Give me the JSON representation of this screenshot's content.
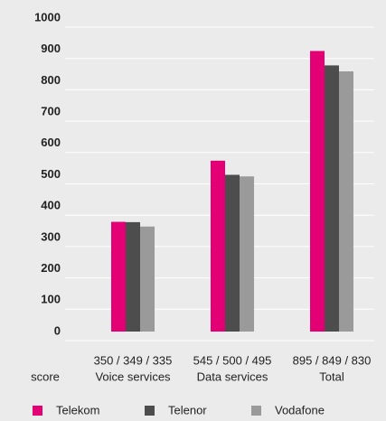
{
  "chart_data": {
    "type": "bar",
    "y_label": "score",
    "categories": [
      "Voice services",
      "Data services",
      "Total"
    ],
    "group_labels": [
      "350 / 349 / 335",
      "545 / 500 / 495",
      "895 / 849 / 830"
    ],
    "series": [
      {
        "name": "Telekom",
        "color": "#e20074",
        "values": [
          350,
          545,
          895
        ]
      },
      {
        "name": "Telenor",
        "color": "#4d4d4d",
        "values": [
          349,
          500,
          849
        ]
      },
      {
        "name": "Vodafone",
        "color": "#9a9a9a",
        "values": [
          335,
          495,
          830
        ]
      }
    ],
    "ylim": [
      0,
      1000
    ],
    "yticks": [
      0,
      100,
      200,
      300,
      400,
      500,
      600,
      700,
      800,
      900,
      1000
    ],
    "grid": true
  }
}
